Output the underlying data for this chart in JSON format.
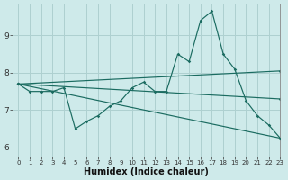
{
  "title": "",
  "xlabel": "Humidex (Indice chaleur)",
  "ylabel": "",
  "bg_color": "#ceeaea",
  "line_color": "#1a6b60",
  "grid_color": "#aed0d0",
  "xlim": [
    -0.5,
    23
  ],
  "ylim": [
    5.75,
    9.85
  ],
  "yticks": [
    6,
    7,
    8,
    9
  ],
  "ytick_labels": [
    "6",
    "7",
    "8",
    "9"
  ],
  "xticks": [
    0,
    1,
    2,
    3,
    4,
    5,
    6,
    7,
    8,
    9,
    10,
    11,
    12,
    13,
    14,
    15,
    16,
    17,
    18,
    19,
    20,
    21,
    22,
    23
  ],
  "series": [
    {
      "x": [
        0,
        1,
        2,
        3,
        4,
        5,
        6,
        7,
        8,
        9,
        10,
        11,
        12,
        13,
        14,
        15,
        16,
        17,
        18,
        19,
        20,
        21,
        22,
        23
      ],
      "y": [
        7.7,
        7.5,
        7.5,
        7.5,
        7.6,
        6.5,
        6.7,
        6.85,
        7.1,
        7.25,
        7.6,
        7.75,
        7.5,
        7.5,
        8.5,
        8.3,
        9.4,
        9.65,
        8.5,
        8.1,
        7.25,
        6.85,
        6.6,
        6.25
      ]
    },
    {
      "x": [
        0,
        23
      ],
      "y": [
        7.7,
        6.25
      ]
    },
    {
      "x": [
        0,
        23
      ],
      "y": [
        7.7,
        8.05
      ]
    },
    {
      "x": [
        0,
        23
      ],
      "y": [
        7.7,
        7.3
      ]
    }
  ]
}
